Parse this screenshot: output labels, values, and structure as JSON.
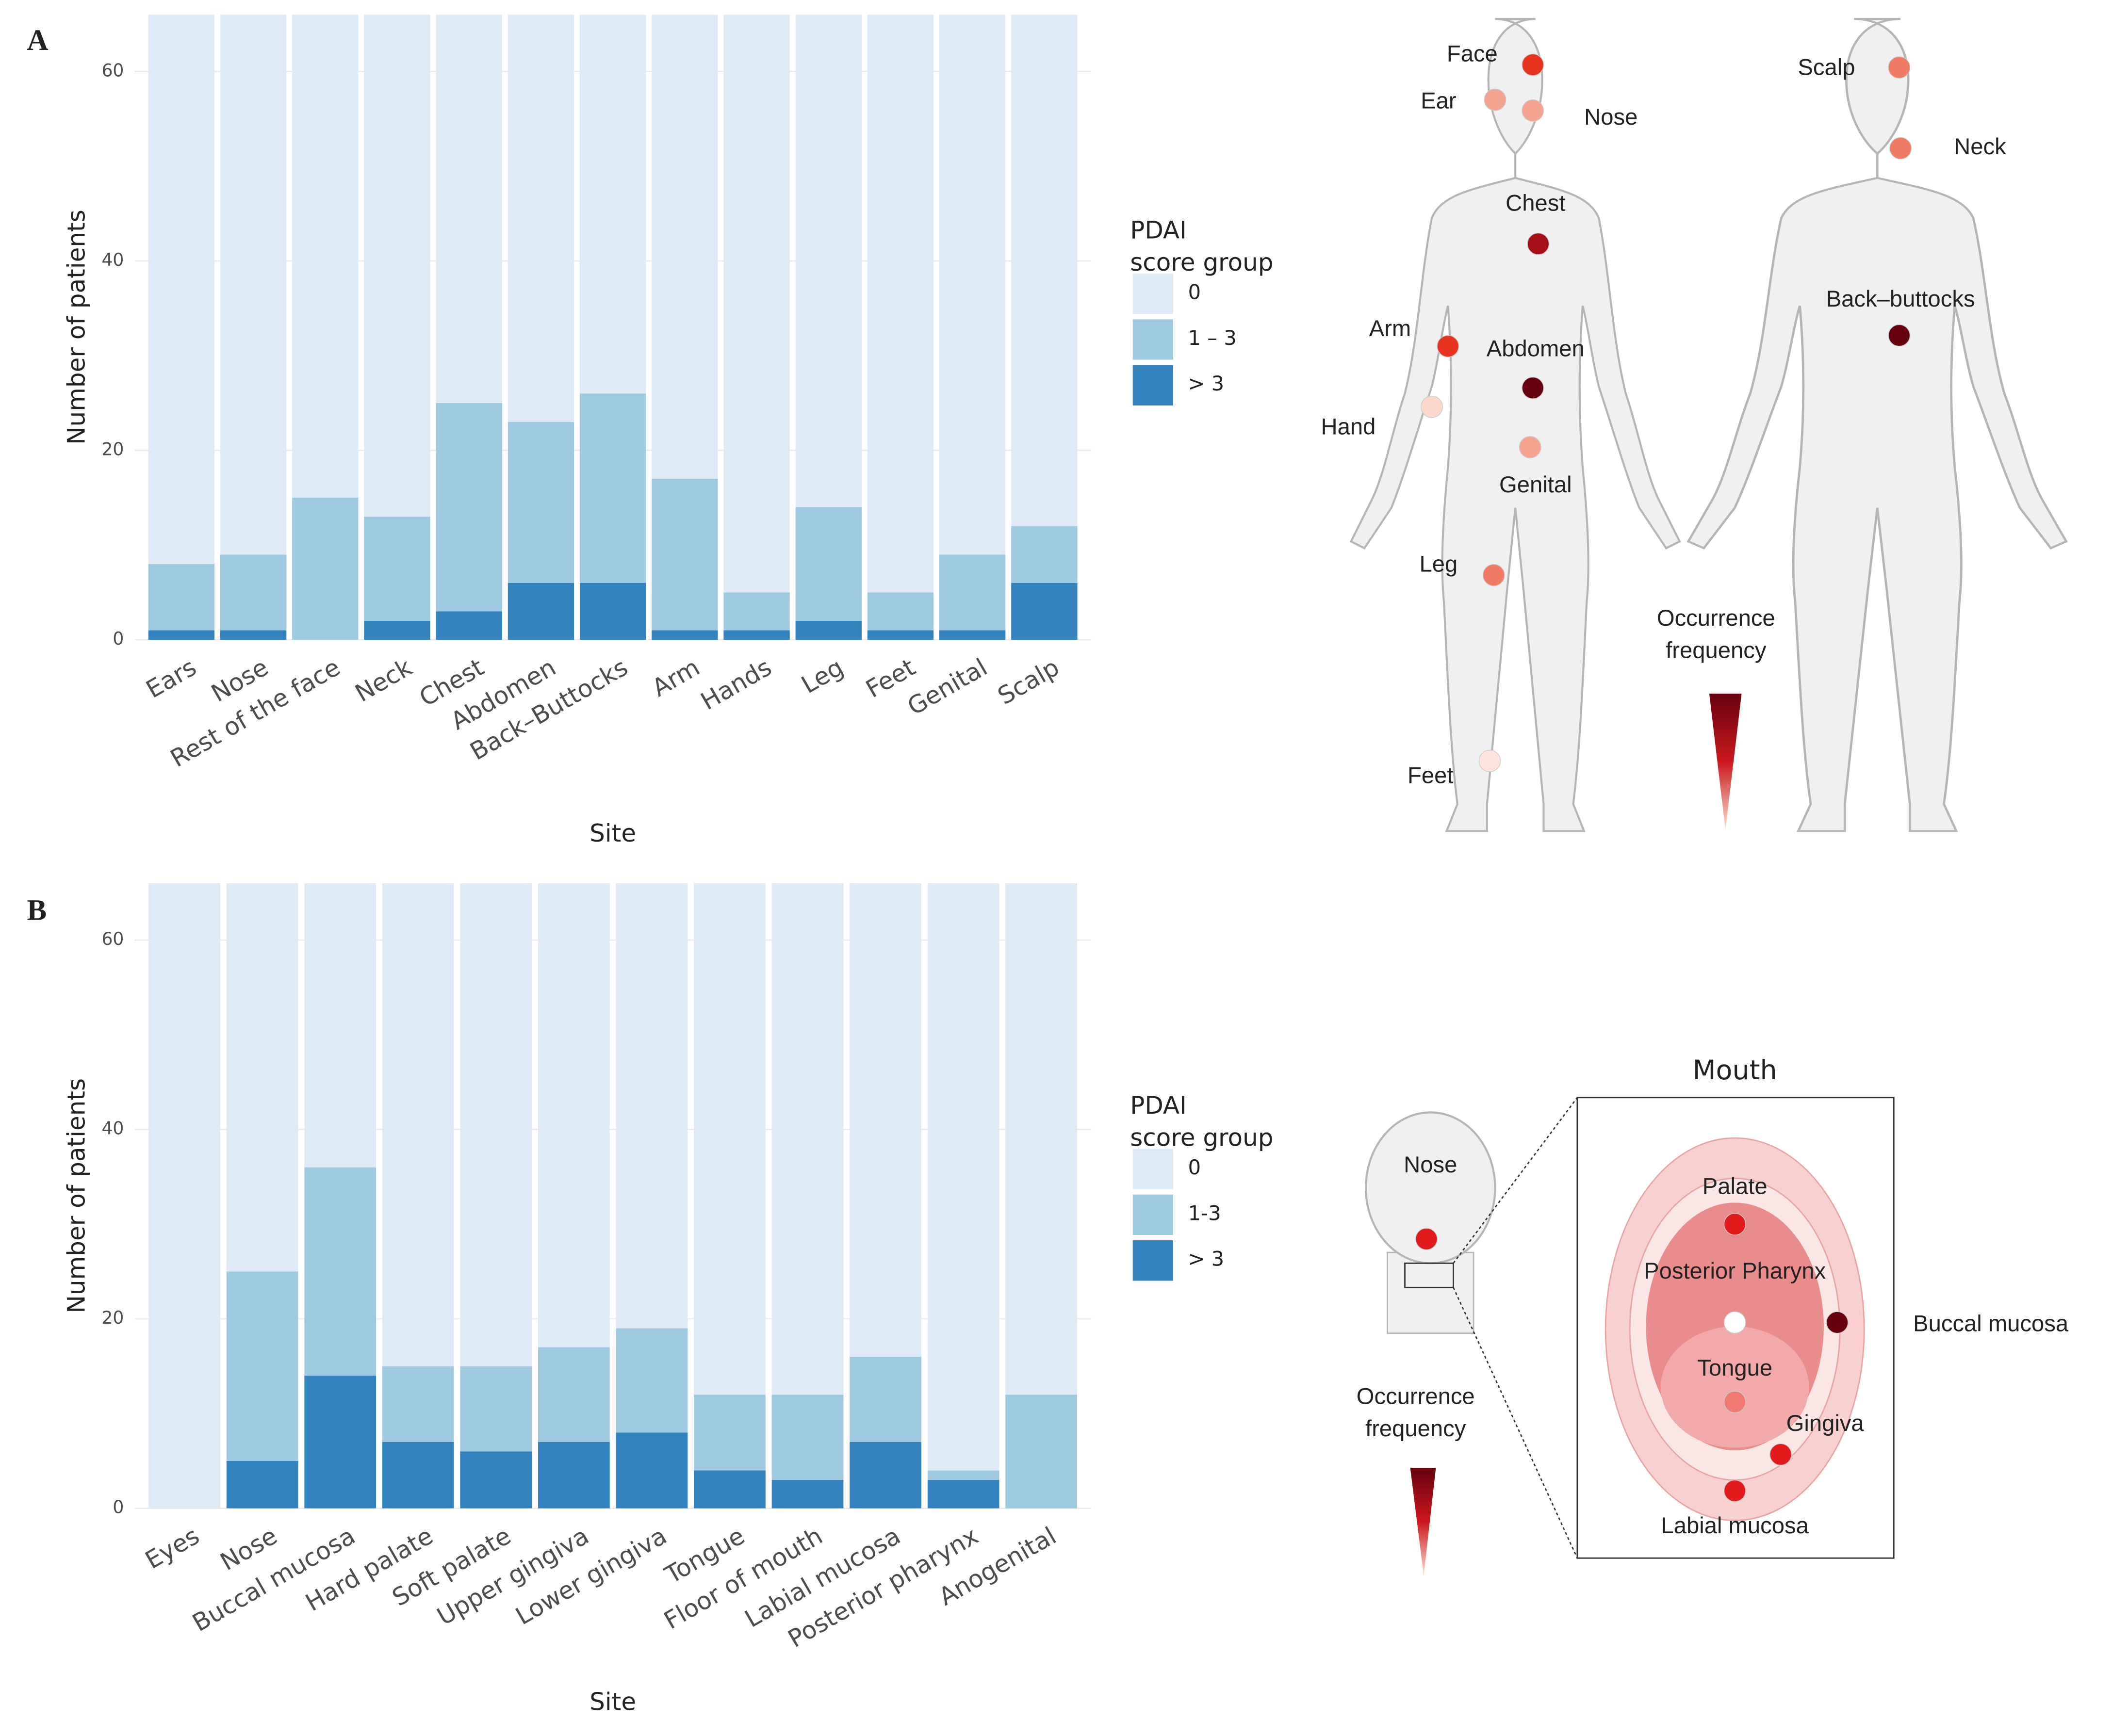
{
  "chart_data": [
    {
      "type": "bar",
      "stacked": true,
      "panel": "A",
      "x_label": "Site",
      "y_label": "Number of patients",
      "legend_title": [
        "PDAI",
        "score group"
      ],
      "categories": [
        "Ears",
        "Nose",
        "Rest of the face",
        "Neck",
        "Chest",
        "Abdomen",
        "Back–Buttocks",
        "Arm",
        "Hands",
        "Leg",
        "Feet",
        "Genital",
        "Scalp"
      ],
      "series": [
        {
          "name": "0",
          "color": "#deebf7",
          "values": [
            58,
            57,
            51,
            53,
            41,
            43,
            40,
            49,
            61,
            52,
            61,
            57,
            54
          ]
        },
        {
          "name": "1 – 3",
          "color": "#9ecae1",
          "values": [
            7,
            8,
            15,
            11,
            22,
            17,
            20,
            16,
            4,
            12,
            4,
            8,
            6
          ]
        },
        {
          "name": "> 3",
          "color": "#3182bd",
          "values": [
            1,
            1,
            0,
            2,
            3,
            6,
            6,
            1,
            1,
            2,
            1,
            1,
            6
          ]
        }
      ],
      "ylim": [
        0,
        66
      ],
      "yticks": [
        0,
        20,
        40,
        60
      ],
      "grid": true
    },
    {
      "type": "bar",
      "stacked": true,
      "panel": "B",
      "x_label": "Site",
      "y_label": "Number of patients",
      "legend_title": [
        "PDAI",
        "score group"
      ],
      "categories": [
        "Eyes",
        "Nose",
        "Buccal mucosa",
        "Hard palate",
        "Soft palate",
        "Upper gingiva",
        "Lower gingiva",
        "Tongue",
        "Floor of mouth",
        "Labial mucosa",
        "Posterior pharynx",
        "Anogenital"
      ],
      "series": [
        {
          "name": "0",
          "color": "#deebf7",
          "values": [
            66,
            41,
            30,
            51,
            51,
            49,
            47,
            54,
            54,
            50,
            62,
            54
          ]
        },
        {
          "name": "1-3",
          "color": "#9ecae1",
          "values": [
            0,
            20,
            22,
            8,
            9,
            10,
            11,
            8,
            9,
            9,
            1,
            12
          ]
        },
        {
          "name": "> 3",
          "color": "#3182bd",
          "values": [
            0,
            5,
            14,
            7,
            6,
            7,
            8,
            4,
            3,
            7,
            3,
            0
          ]
        }
      ],
      "ylim": [
        0,
        66
      ],
      "yticks": [
        0,
        20,
        40,
        60
      ],
      "grid": true
    }
  ],
  "body_map": {
    "legend_title": [
      "Occurrence",
      "frequency"
    ],
    "labels": [
      {
        "label": "Face",
        "color": "#e8341c"
      },
      {
        "label": "Ear",
        "color": "#f4a38f"
      },
      {
        "label": "Nose",
        "color": "#f4a38f"
      },
      {
        "label": "Chest",
        "color": "#a50f15"
      },
      {
        "label": "Arm",
        "color": "#e8341c"
      },
      {
        "label": "Abdomen",
        "color": "#67000d"
      },
      {
        "label": "Hand",
        "color": "#fbd7cc"
      },
      {
        "label": "Genital",
        "color": "#f4a38f"
      },
      {
        "label": "Leg",
        "color": "#f07a62"
      },
      {
        "label": "Feet",
        "color": "#fde3dc"
      },
      {
        "label": "Scalp",
        "color": "#f07a62"
      },
      {
        "label": "Neck",
        "color": "#f07a62"
      },
      {
        "label": "Back–buttocks",
        "color": "#67000d"
      }
    ]
  },
  "mouth_map": {
    "title": "Mouth",
    "legend_title": [
      "Occurrence",
      "frequency"
    ],
    "labels": [
      {
        "label": "Nose",
        "color": "#e31a1c"
      },
      {
        "label": "Palate",
        "color": "#e31a1c"
      },
      {
        "label": "Posterior Pharynx",
        "color": "#ffffff"
      },
      {
        "label": "Buccal mucosa",
        "color": "#67000d"
      },
      {
        "label": "Tongue",
        "color": "#f07a70"
      },
      {
        "label": "Gingiva",
        "color": "#e31a1c"
      },
      {
        "label": "Labial mucosa",
        "color": "#e31a1c"
      }
    ]
  }
}
